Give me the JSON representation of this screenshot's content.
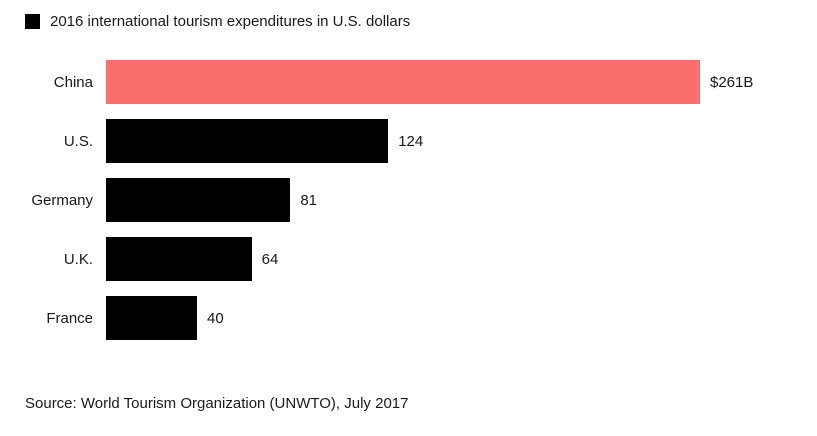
{
  "legend": {
    "label": "2016 international tourism expenditures in U.S. dollars",
    "swatch_color": "#000000"
  },
  "source_text": "Source: World Tourism Organization (UNWTO), July 2017",
  "colors": {
    "highlight_bar": "#fb6e6e",
    "default_bar": "#000000",
    "background": "#ffffff",
    "text": "#1a1a1a"
  },
  "chart_data": {
    "type": "bar",
    "orientation": "horizontal",
    "title": "2016 international tourism expenditures in U.S. dollars",
    "categories": [
      "China",
      "U.S.",
      "Germany",
      "U.K.",
      "France"
    ],
    "values": [
      261,
      124,
      81,
      64,
      40
    ],
    "value_labels": [
      "$261B",
      "124",
      "81",
      "64",
      "40"
    ],
    "unit": "billions of U.S. dollars",
    "xlim": [
      0,
      261
    ],
    "highlight_index": 0,
    "grid": false,
    "legend_position": "top-left",
    "value_labels_position": "end-of-bar"
  }
}
